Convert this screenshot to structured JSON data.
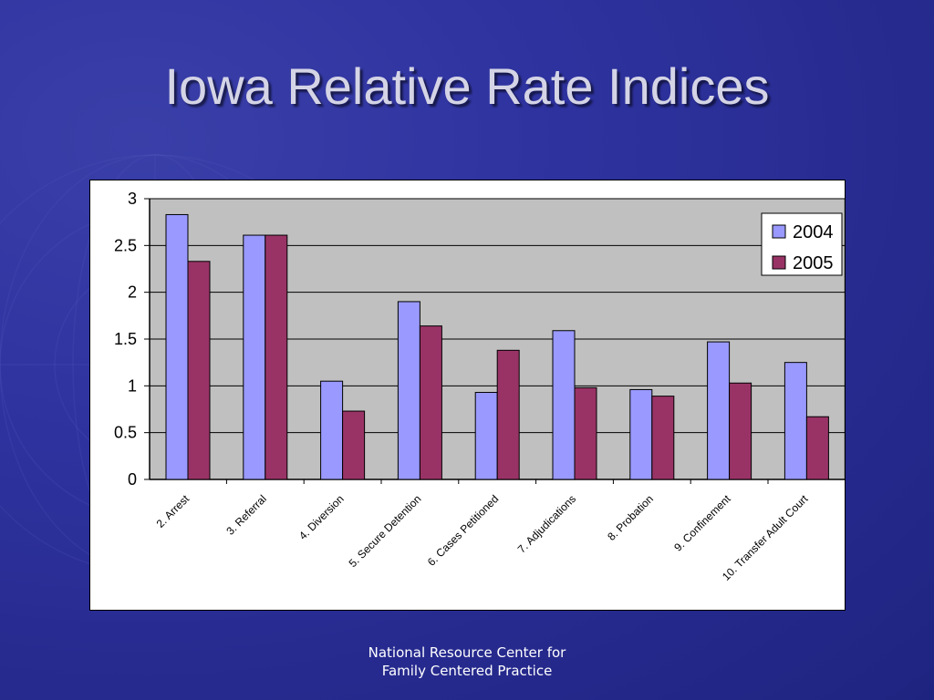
{
  "slide": {
    "title": "Iowa Relative Rate Indices",
    "footer_line1": "National Resource Center for",
    "footer_line2": "Family Centered Practice"
  },
  "colors": {
    "plot_bg": "#c0c0c0",
    "series_2004": "#9999ff",
    "series_2005": "#993366",
    "title_text": "#d4d4e6"
  },
  "chart_data": {
    "type": "bar",
    "categories": [
      "2. Arrest",
      "3. Referral",
      "4. Diversion",
      "5. Secure Detention",
      "6. Cases Petitioned",
      "7. Adjudications",
      "8. Probation",
      "9. Confinement",
      "10. Transfer Adult Court"
    ],
    "series": [
      {
        "name": "2004",
        "values": [
          2.83,
          2.61,
          1.05,
          1.9,
          0.93,
          1.59,
          0.96,
          1.47,
          1.25
        ]
      },
      {
        "name": "2005",
        "values": [
          2.33,
          2.61,
          0.73,
          1.64,
          1.38,
          0.98,
          0.89,
          1.03,
          0.67
        ]
      }
    ],
    "yticks": [
      "0",
      "0.5",
      "1",
      "1.5",
      "2",
      "2.5",
      "3"
    ],
    "ylim": [
      0,
      3
    ],
    "grid": true,
    "legend": "right"
  }
}
